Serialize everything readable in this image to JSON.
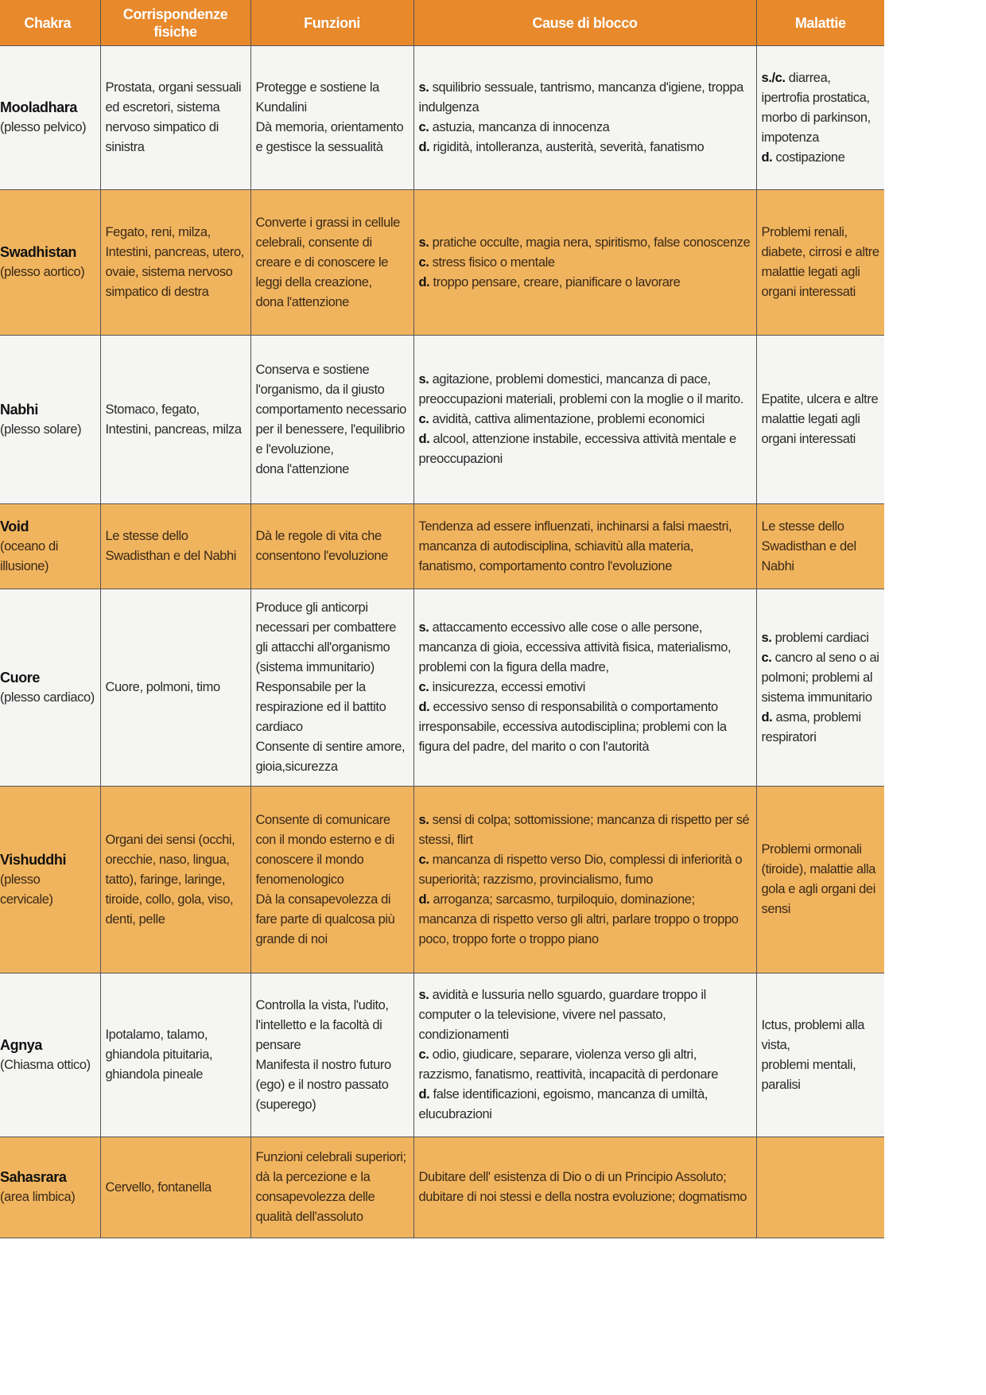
{
  "header": [
    "Chakra",
    "Corrispondenze fisiche",
    "Funzioni",
    "Cause di blocco",
    "Malattie"
  ],
  "colors": {
    "header": "#e8892c",
    "orange_row": "#f1b45e",
    "white_row": "#f5f5f3"
  },
  "rows": [
    {
      "tone": "white",
      "name": "Mooladhara",
      "sub": "(plesso pelvico)",
      "physical": [
        {
          "t": "Prostata, organi sessuali ed escretori, sistema nervoso simpatico di sinistra"
        }
      ],
      "functions": [
        {
          "t": "Protegge e sostiene la Kundalini"
        },
        {
          "t": "Dà memoria, orientamento e gestisce la sessualità"
        }
      ],
      "causes": [
        {
          "p": "s.",
          "t": " squilibrio sessuale, tantrismo, mancanza d'igiene, troppa indulgenza"
        },
        {
          "p": "c.",
          "t": " astuzia, mancanza di innocenza"
        },
        {
          "p": "d.",
          "t": " rigidità, intolleranza, austerità, severità, fanatismo"
        }
      ],
      "diseases": [
        {
          "p": "s./c.",
          "t": " diarrea, ipertrofia prostatica, morbo di parkinson, impotenza"
        },
        {
          "p": "d.",
          "t": " costipazione"
        }
      ]
    },
    {
      "tone": "orange",
      "name": "Swadhistan",
      "sub": "(plesso aortico)",
      "physical": [
        {
          "t": "Fegato, reni, milza, Intestini, pancreas, utero, ovaie, sistema nervoso simpatico di destra"
        }
      ],
      "functions": [
        {
          "t": "Converte i grassi in cellule celebrali, consente di creare e di conoscere le leggi della creazione,"
        },
        {
          "t": "dona l'attenzione"
        }
      ],
      "causes": [
        {
          "p": "s.",
          "t": " pratiche occulte,  magia nera, spiritismo, false conoscenze"
        },
        {
          "p": "c.",
          "t": " stress fisico o mentale"
        },
        {
          "p": "d.",
          "t": " troppo pensare, creare, pianificare o lavorare"
        }
      ],
      "diseases": [
        {
          "t": "Problemi renali, diabete, cirrosi e altre malattie legati agli organi interessati"
        }
      ]
    },
    {
      "tone": "white",
      "name": "Nabhi",
      "sub": "(plesso solare)",
      "physical": [
        {
          "t": "Stomaco, fegato, Intestini, pancreas, milza"
        }
      ],
      "functions": [
        {
          "t": "Conserva e sostiene l'organismo, da il giusto comportamento necessario per il benessere, l'equilibrio e l'evoluzione,"
        },
        {
          "t": "dona l'attenzione"
        }
      ],
      "causes": [
        {
          "p": "s.",
          "t": "  agitazione, problemi domestici, mancanza di pace, preoccupazioni materiali, problemi con la moglie o il marito."
        },
        {
          "p": "c.",
          "t": " avidità,  cattiva alimentazione, problemi economici"
        },
        {
          "p": "d.",
          "t": " alcool, attenzione instabile, eccessiva attività mentale e preoccupazioni"
        }
      ],
      "diseases": [
        {
          "t": "Epatite, ulcera e altre malattie legati agli organi interessati"
        }
      ]
    },
    {
      "tone": "orange",
      "name": "Void",
      "sub": "(oceano di illusione)",
      "physical": [
        {
          "t": "Le stesse dello Swadisthan e del Nabhi"
        }
      ],
      "functions": [
        {
          "t": "Dà le regole di vita che consentono l'evoluzione"
        }
      ],
      "causes": [
        {
          "t": "Tendenza ad essere influenzati, inchinarsi a falsi maestri, mancanza di autodisciplina, schiavitù alla materia, fanatismo, comportamento contro l'evoluzione"
        }
      ],
      "diseases": [
        {
          "t": "Le stesse dello Swadisthan e del Nabhi"
        }
      ]
    },
    {
      "tone": "white",
      "name": "Cuore",
      "sub": "(plesso cardiaco)",
      "physical": [
        {
          "t": "Cuore, polmoni, timo"
        }
      ],
      "functions": [
        {
          "t": "Produce gli anticorpi necessari per combattere gli attacchi all'organismo (sistema immunitario)"
        },
        {
          "t": "Responsabile per la respirazione ed il battito cardiaco"
        },
        {
          "t": "Consente di sentire amore, gioia,sicurezza"
        }
      ],
      "causes": [
        {
          "p": "s.",
          "t": " attaccamento eccessivo alle cose o alle persone, mancanza di gioia, eccessiva attività fisica, materialismo,  problemi con la figura della madre,"
        },
        {
          "p": "c.",
          "t": " insicurezza, eccessi emotivi"
        },
        {
          "p": "d.",
          "t": " eccessivo senso di responsabilità o comportamento irresponsabile, eccessiva autodisciplina; problemi con la figura del padre, del marito o con l'autorità"
        }
      ],
      "diseases": [
        {
          "p": "s.",
          "t": " problemi cardiaci"
        },
        {
          "p": "c.",
          "t": " cancro al seno o ai polmoni; problemi al sistema immunitario"
        },
        {
          "p": "d.",
          "t": " asma, problemi respiratori"
        }
      ]
    },
    {
      "tone": "orange",
      "name": "Vishuddhi",
      "sub": "(plesso cervicale)",
      "physical": [
        {
          "t": "Organi dei sensi (occhi, orecchie, naso, lingua, tatto), faringe, laringe, tiroide, collo, gola, viso, denti, pelle"
        }
      ],
      "functions": [
        {
          "t": "Consente di comunicare con il mondo esterno e di conoscere il mondo fenomenologico"
        },
        {
          "t": "Dà la consapevolezza di fare parte di qualcosa più grande di noi"
        }
      ],
      "causes": [
        {
          "p": "s.",
          "t": " sensi di colpa; sottomissione; mancanza di rispetto per sé stessi, flirt"
        },
        {
          "p": "c.",
          "t": " mancanza di rispetto verso Dio, complessi di inferiorità o superiorità; razzismo, provincialismo, fumo"
        },
        {
          "p": "d.",
          "t": " arroganza; sarcasmo, turpiloquio, dominazione; mancanza di rispetto verso gli altri, parlare troppo o troppo poco, troppo forte o troppo piano"
        }
      ],
      "diseases": [
        {
          "t": "Problemi ormonali (tiroide), malattie alla gola e agli organi dei sensi"
        }
      ]
    },
    {
      "tone": "white",
      "name": "Agnya",
      "sub": "(Chiasma ottico)",
      "physical": [
        {
          "t": "Ipotalamo, talamo, ghiandola pituitaria, ghiandola pineale"
        }
      ],
      "functions": [
        {
          "t": "Controlla la vista, l'udito,  l'intelletto e la facoltà di pensare"
        },
        {
          "t": "Manifesta il nostro futuro (ego)  e il nostro passato (superego)"
        }
      ],
      "causes": [
        {
          "p": "s.",
          "t": " avidità e lussuria nello sguardo, guardare troppo il computer o la televisione, vivere nel passato, condizionamenti"
        },
        {
          "p": "c.",
          "t": " odio, giudicare, separare, violenza verso gli altri, razzismo, fanatismo, reattività, incapacità di perdonare"
        },
        {
          "p": "d.",
          "t": " false identificazioni, egoismo, mancanza di umiltà, elucubrazioni"
        }
      ],
      "diseases": [
        {
          "t": "Ictus, problemi alla vista,"
        },
        {
          "t": "problemi mentali, paralisi"
        }
      ]
    },
    {
      "tone": "orange",
      "name": "Sahasrara",
      "sub": "(area limbica)",
      "physical": [
        {
          "t": "Cervello, fontanella"
        }
      ],
      "functions": [
        {
          "t": "Funzioni celebrali superiori; dà la percezione e la consapevolezza delle qualità dell'assoluto"
        }
      ],
      "causes": [
        {
          "t": "Dubitare dell' esistenza di Dio o di un Principio Assoluto; dubitare di noi stessi e della nostra evoluzione; dogmatismo"
        }
      ],
      "diseases": []
    }
  ]
}
